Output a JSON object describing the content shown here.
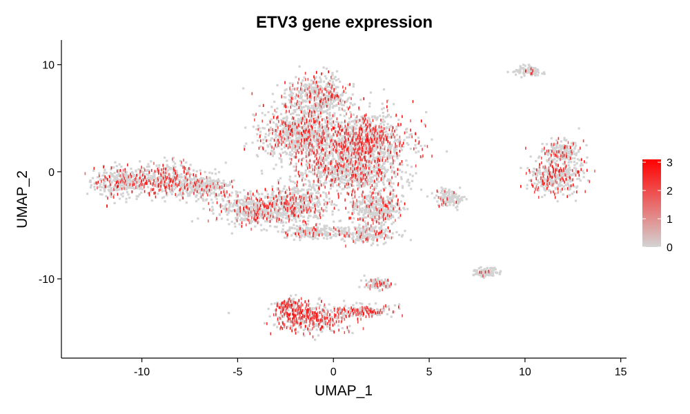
{
  "chart_data": {
    "type": "scatter",
    "title": "ETV3 gene expression",
    "xlabel": "UMAP_1",
    "ylabel": "UMAP_2",
    "xlim": [
      -14.2,
      15.3
    ],
    "ylim": [
      -17.4,
      12.3
    ],
    "x_ticks": [
      -10,
      -5,
      0,
      5,
      10,
      15
    ],
    "x_tick_labels": [
      "-10",
      "-5",
      "0",
      "5",
      "10",
      "15"
    ],
    "y_ticks": [
      -10,
      0,
      10
    ],
    "y_tick_labels": [
      "-10",
      "0",
      "10"
    ],
    "grid": false,
    "color_scale": {
      "low_color": "#d3d3d3",
      "high_color": "#ff0000",
      "min": 0,
      "max": 3.1,
      "ticks": [
        0,
        1,
        2,
        3
      ],
      "tick_labels": [
        "0",
        "1",
        "2",
        "3"
      ],
      "legend_position": "right"
    },
    "clusters": [
      {
        "center": [
          -11.0,
          -0.8
        ],
        "spread": [
          1.1,
          0.9
        ],
        "expr_rate": 0.25
      },
      {
        "center": [
          -8.6,
          -0.6
        ],
        "spread": [
          0.9,
          1.0
        ],
        "expr_rate": 0.3
      },
      {
        "center": [
          -6.8,
          -1.3
        ],
        "spread": [
          0.9,
          0.7
        ],
        "expr_rate": 0.15
      },
      {
        "center": [
          -4.2,
          -3.4
        ],
        "spread": [
          1.3,
          1.0
        ],
        "expr_rate": 0.2
      },
      {
        "center": [
          -2.0,
          -3.0
        ],
        "spread": [
          1.2,
          1.1
        ],
        "expr_rate": 0.2
      },
      {
        "center": [
          -1.8,
          3.6
        ],
        "spread": [
          1.4,
          1.6
        ],
        "expr_rate": 0.22
      },
      {
        "center": [
          -0.8,
          7.2
        ],
        "spread": [
          1.1,
          1.2
        ],
        "expr_rate": 0.2
      },
      {
        "center": [
          1.4,
          3.2
        ],
        "spread": [
          1.8,
          1.6
        ],
        "expr_rate": 0.35
      },
      {
        "center": [
          0.8,
          0.2
        ],
        "spread": [
          1.8,
          1.3
        ],
        "expr_rate": 0.25
      },
      {
        "center": [
          2.2,
          -3.2
        ],
        "spread": [
          0.9,
          1.2
        ],
        "expr_rate": 0.15
      },
      {
        "center": [
          1.8,
          -5.8
        ],
        "spread": [
          1.0,
          0.5
        ],
        "expr_rate": 0.1
      },
      {
        "center": [
          -1.0,
          -5.5
        ],
        "spread": [
          1.2,
          0.4
        ],
        "expr_rate": 0.12
      },
      {
        "center": [
          6.0,
          -2.3
        ],
        "spread": [
          0.5,
          0.5
        ],
        "expr_rate": 0.12
      },
      {
        "center": [
          11.6,
          -0.3
        ],
        "spread": [
          0.9,
          1.1
        ],
        "expr_rate": 0.28
      },
      {
        "center": [
          11.9,
          1.9
        ],
        "spread": [
          0.6,
          0.7
        ],
        "expr_rate": 0.2
      },
      {
        "center": [
          10.1,
          9.5
        ],
        "spread": [
          0.5,
          0.3
        ],
        "expr_rate": 0.04
      },
      {
        "center": [
          7.9,
          -9.3
        ],
        "spread": [
          0.4,
          0.3
        ],
        "expr_rate": 0.05
      },
      {
        "center": [
          -1.2,
          -13.6
        ],
        "spread": [
          1.2,
          0.9
        ],
        "expr_rate": 0.55
      },
      {
        "center": [
          1.5,
          -12.9
        ],
        "spread": [
          1.0,
          0.4
        ],
        "expr_rate": 0.4
      },
      {
        "center": [
          -2.4,
          -12.3
        ],
        "spread": [
          0.5,
          0.4
        ],
        "expr_rate": 0.45
      },
      {
        "center": [
          2.3,
          -10.4
        ],
        "spread": [
          0.5,
          0.3
        ],
        "expr_rate": 0.2
      }
    ]
  }
}
